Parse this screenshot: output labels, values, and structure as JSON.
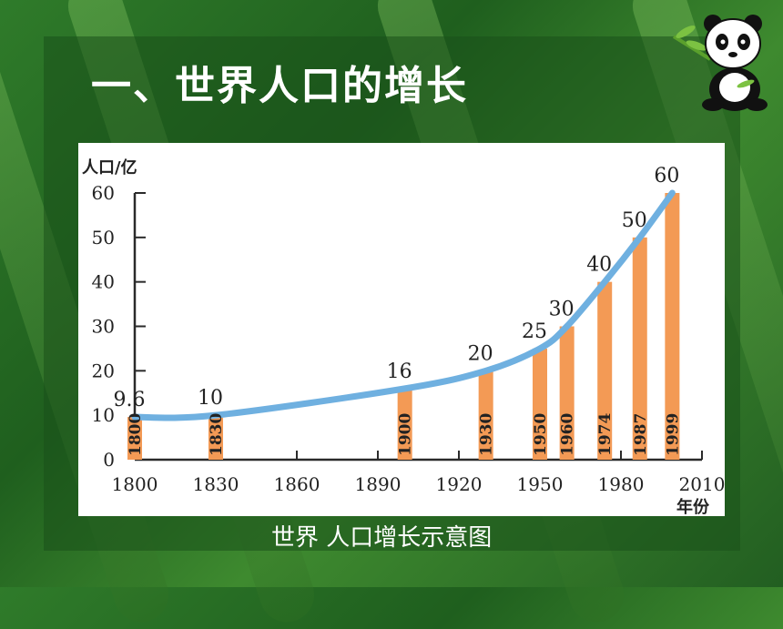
{
  "slide": {
    "title": "一、世界人口的增长",
    "caption": "世界 人口增长示意图"
  },
  "colors": {
    "bar": "#f39a55",
    "curve": "#6fb0e0",
    "axis": "#2a2a2a"
  },
  "chart_data": {
    "type": "bar",
    "ylabel": "人口/亿",
    "xlabel": "年份",
    "ylim": [
      0,
      60
    ],
    "yticks": [
      0,
      10,
      20,
      30,
      40,
      50,
      60
    ],
    "xlim": [
      1800,
      2010
    ],
    "xticks": [
      1800,
      1830,
      1860,
      1890,
      1920,
      1950,
      1980,
      2010
    ],
    "bars": [
      {
        "year": 1800,
        "value": 9.6,
        "value_label": "9.6",
        "year_label": "1800"
      },
      {
        "year": 1830,
        "value": 10,
        "value_label": "10",
        "year_label": "1830"
      },
      {
        "year": 1900,
        "value": 16,
        "value_label": "16",
        "year_label": "1900"
      },
      {
        "year": 1930,
        "value": 20,
        "value_label": "20",
        "year_label": "1930"
      },
      {
        "year": 1950,
        "value": 25,
        "value_label": "25",
        "year_label": "1950"
      },
      {
        "year": 1960,
        "value": 30,
        "value_label": "30",
        "year_label": "1960"
      },
      {
        "year": 1974,
        "value": 40,
        "value_label": "40",
        "year_label": "1974"
      },
      {
        "year": 1987,
        "value": 50,
        "value_label": "50",
        "year_label": "1987"
      },
      {
        "year": 1999,
        "value": 60,
        "value_label": "60",
        "year_label": "1999"
      }
    ]
  }
}
